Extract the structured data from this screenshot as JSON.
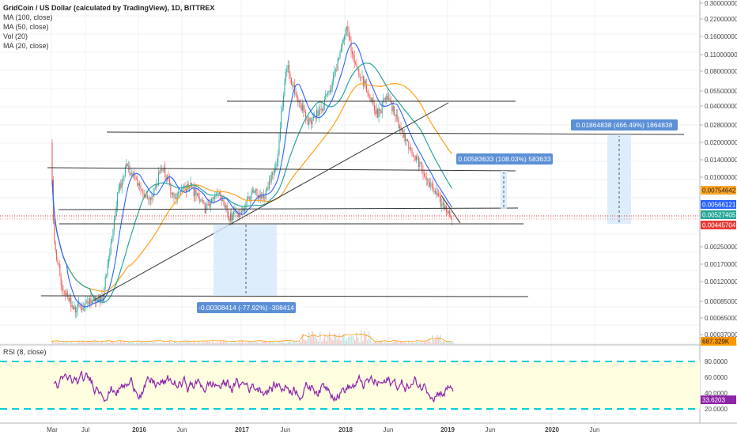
{
  "legend": {
    "title": "GridCoin / US Dollar (calculated by TradingView), 1D, BITTREX",
    "indicators": [
      "MA (100, close)",
      "MA (50, close)",
      "Vol (20)",
      "MA (20, close)"
    ]
  },
  "rsi_label": "RSI (8, close)",
  "colors": {
    "up": "#26a69a",
    "down": "#ef5350",
    "ma20": "#2962ff",
    "ma50": "#26a69a",
    "ma100": "#ffa726",
    "rsi": "#8e24aa",
    "rsi_band": "#fffde0",
    "rsi_guide": "#00d0d8",
    "measure_fill": "#d6e8fb",
    "measure_label": "#5b8fd6"
  },
  "price_axis": [
    "0.30000000",
    "0.22000000",
    "0.16000000",
    "0.11000000",
    "0.08000000",
    "0.05500000",
    "0.04000000",
    "0.02800000",
    "0.02000000",
    "0.01400000",
    "0.01000000",
    "0.00250000",
    "0.00170000",
    "0.00120000",
    "0.00085000",
    "0.00065000",
    "0.00037000"
  ],
  "price_badges": [
    {
      "value": "0.00754642",
      "color": "#ffa726",
      "text_color": "#222222"
    },
    {
      "value": "0.00566121",
      "color": "#2962ff",
      "text_color": "#ffffff"
    },
    {
      "value": "0.00527405",
      "color": "#26a69a",
      "text_color": "#ffffff"
    },
    {
      "value": "0.00445704",
      "color": "#e53935",
      "text_color": "#ffffff"
    },
    {
      "value": "687.329K",
      "color": "#ff9800",
      "text_color": "#222222"
    }
  ],
  "rsi_axis": [
    "80.0000",
    "60.0000",
    "40.0000",
    "20.0000"
  ],
  "rsi_badge": {
    "value": "33.6203",
    "color": "#8e24aa"
  },
  "time_axis": [
    "Mar",
    "Jul",
    "2016",
    "Jun",
    "2017",
    "Jun",
    "2018",
    "Jun",
    "2019",
    "Jun",
    "2020",
    "Jun"
  ],
  "measurements": [
    {
      "label": "0.01864838 (466.49%) 1864838"
    },
    {
      "label": "0.00583633 (108.03%) 583633"
    },
    {
      "label": "-0.00308414 (-77.92%) -308414"
    }
  ],
  "chart_data": {
    "type": "line",
    "title": "GridCoin / US Dollar (calculated by TradingView), 1D, BITTREX",
    "scale": "log",
    "x": [
      "2015-03",
      "2015-05",
      "2015-07",
      "2015-09",
      "2015-11",
      "2016-01",
      "2016-03",
      "2016-05",
      "2016-07",
      "2016-09",
      "2016-11",
      "2017-01",
      "2017-03",
      "2017-05",
      "2017-07",
      "2017-09",
      "2017-11",
      "2018-01",
      "2018-02",
      "2018-04",
      "2018-06",
      "2018-08",
      "2018-10",
      "2018-12",
      "2019-01"
    ],
    "series": [
      {
        "name": "GridCoin / US Dollar",
        "values": [
          0.0032,
          0.00078,
          0.00068,
          0.0012,
          0.014,
          0.0062,
          0.0135,
          0.0052,
          0.0051,
          0.007,
          0.0042,
          0.0059,
          0.0054,
          0.052,
          0.036,
          0.033,
          0.035,
          0.2,
          0.072,
          0.052,
          0.039,
          0.022,
          0.013,
          0.0062,
          0.00445
        ]
      }
    ],
    "rsi": {
      "label": "RSI (8, close)",
      "last": 33.6203,
      "levels": [
        80,
        20
      ],
      "range": [
        10,
        90
      ]
    }
  }
}
